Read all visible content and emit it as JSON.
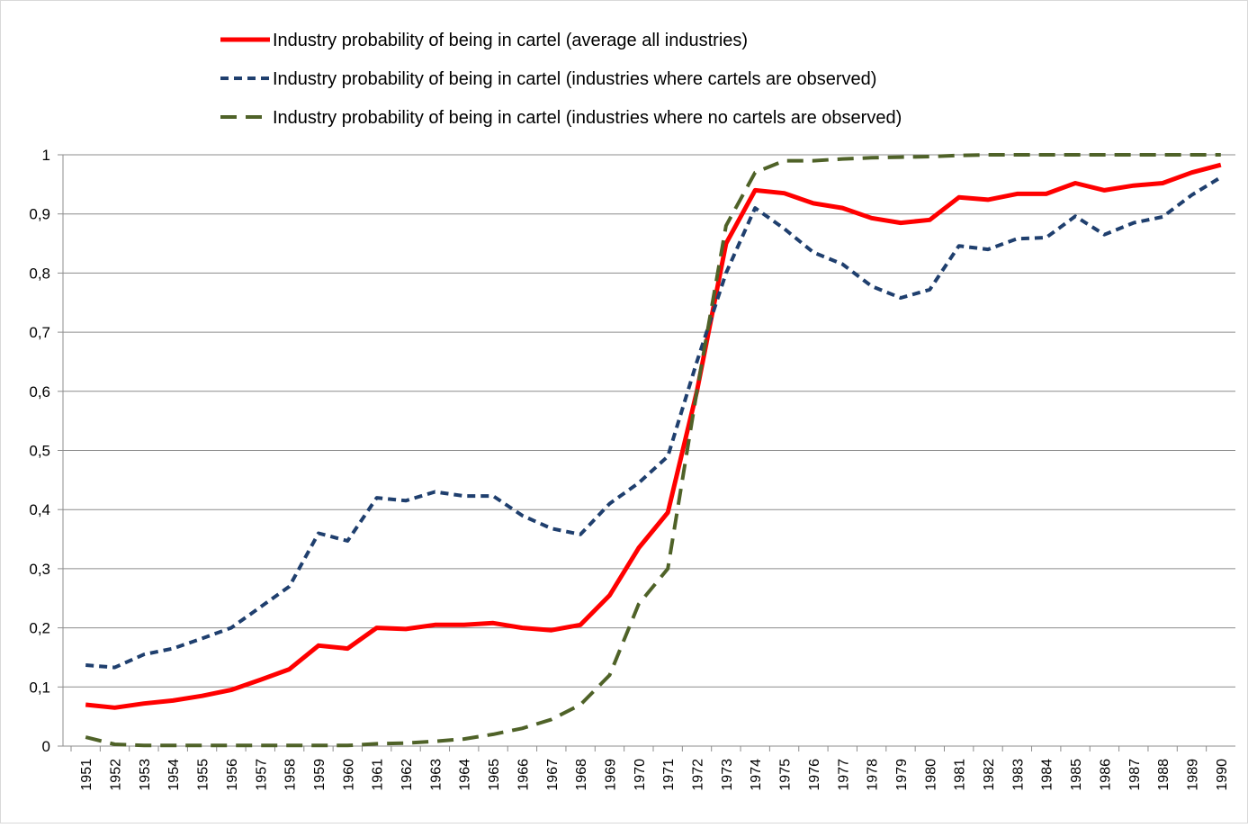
{
  "chart_data": {
    "type": "line",
    "categories": [
      "1951",
      "1952",
      "1953",
      "1954",
      "1955",
      "1956",
      "1957",
      "1958",
      "1959",
      "1960",
      "1961",
      "1962",
      "1963",
      "1964",
      "1965",
      "1966",
      "1967",
      "1968",
      "1969",
      "1970",
      "1971",
      "1972",
      "1973",
      "1974",
      "1975",
      "1976",
      "1977",
      "1978",
      "1979",
      "1980",
      "1981",
      "1982",
      "1983",
      "1984",
      "1985",
      "1986",
      "1987",
      "1988",
      "1989",
      "1990"
    ],
    "series": [
      {
        "name": "Industry probability of being in cartel (average all industries)",
        "color": "#ff0000",
        "dash": "solid",
        "values": [
          0.07,
          0.065,
          0.072,
          0.077,
          0.085,
          0.095,
          0.112,
          0.13,
          0.17,
          0.165,
          0.2,
          0.198,
          0.205,
          0.205,
          0.208,
          0.2,
          0.196,
          0.205,
          0.255,
          0.335,
          0.395,
          0.6,
          0.85,
          0.94,
          0.935,
          0.918,
          0.91,
          0.893,
          0.885,
          0.89,
          0.928,
          0.924,
          0.934,
          0.934,
          0.952,
          0.94,
          0.948,
          0.952,
          0.97,
          0.983
        ]
      },
      {
        "name": "Industry probability of being in cartel (industries where cartels are observed)",
        "color": "#1f3f6e",
        "dash": "short",
        "values": [
          0.137,
          0.133,
          0.155,
          0.165,
          0.182,
          0.2,
          0.235,
          0.27,
          0.36,
          0.347,
          0.42,
          0.415,
          0.43,
          0.423,
          0.423,
          0.39,
          0.368,
          0.358,
          0.41,
          0.445,
          0.49,
          0.65,
          0.8,
          0.91,
          0.875,
          0.835,
          0.815,
          0.778,
          0.758,
          0.772,
          0.846,
          0.84,
          0.858,
          0.86,
          0.896,
          0.865,
          0.885,
          0.895,
          0.932,
          0.962
        ]
      },
      {
        "name": "Industry probability of being in cartel (industries where no cartels are observed)",
        "color": "#4f6228",
        "dash": "long",
        "values": [
          0.015,
          0.003,
          0.001,
          0.001,
          0.001,
          0.001,
          0.001,
          0.001,
          0.001,
          0.001,
          0.004,
          0.005,
          0.008,
          0.012,
          0.02,
          0.03,
          0.045,
          0.07,
          0.12,
          0.24,
          0.3,
          0.6,
          0.88,
          0.97,
          0.99,
          0.99,
          0.993,
          0.995,
          0.996,
          0.997,
          0.999,
          1,
          1,
          1,
          1,
          1,
          1,
          1,
          1,
          1
        ]
      }
    ],
    "ylim": [
      0,
      1
    ],
    "yticks": [
      0,
      {
        "value": 0.1,
        "label": "0,1"
      },
      {
        "value": 0.2,
        "label": "0,2"
      },
      {
        "value": 0.3,
        "label": "0,3"
      },
      {
        "value": 0.4,
        "label": "0,4"
      },
      {
        "value": 0.5,
        "label": "0,5"
      },
      {
        "value": 0.6,
        "label": "0,6"
      },
      {
        "value": 0.7,
        "label": "0,7"
      },
      {
        "value": 0.8,
        "label": "0,8"
      },
      {
        "value": 0.9,
        "label": "0,9"
      },
      1
    ],
    "grid": true,
    "legend": "top"
  }
}
